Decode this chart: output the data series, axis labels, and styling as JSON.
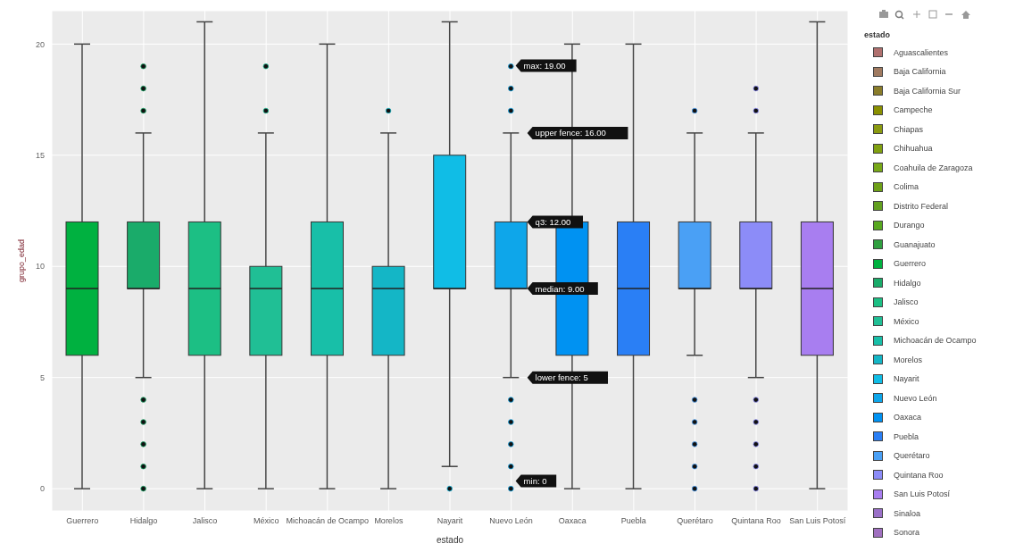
{
  "chart_data": {
    "type": "box",
    "xlabel": "estado",
    "ylabel": "grupo_edad",
    "legend_title": "estado",
    "legend": "right",
    "grid": true,
    "categories": [
      "Guerrero",
      "Hidalgo",
      "Jalisco",
      "México",
      "Michoacán de Ocampo",
      "Morelos",
      "Nayarit",
      "Nuevo León",
      "Oaxaca",
      "Puebla",
      "Querétaro",
      "Quintana Roo",
      "San Luis Potosí"
    ],
    "ylim": [
      -1,
      21.5
    ],
    "yticks": [
      0,
      5,
      10,
      15,
      20
    ],
    "annotations": [
      "max: 19.00",
      {
        "text": "upper fence: 16.00",
        "x": "Nuevo León",
        "y": 16
      },
      {
        "text": "q3: 12.00",
        "x": "Nuevo León",
        "y": 12
      },
      {
        "text": "median: 9.00",
        "x": "Nuevo León",
        "y": 9
      },
      {
        "text": "lower fence: 5",
        "x": "Nuevo León",
        "y": 5
      },
      "min: 0"
    ],
    "series": [
      {
        "name": "Aguascalientes",
        "color": "#b0706e",
        "boxes": [
          null,
          null,
          null,
          null,
          null,
          null,
          null,
          null,
          null,
          null,
          null,
          null,
          null
        ]
      },
      {
        "name": "Baja California",
        "color": "#a07a60",
        "boxes": [
          null,
          null,
          null,
          null,
          null,
          null,
          null,
          null,
          null,
          null,
          null,
          null,
          null
        ]
      },
      {
        "name": "Baja California Sur",
        "color": "#8a7d2a",
        "boxes": [
          null,
          null,
          null,
          null,
          null,
          null,
          null,
          null,
          null,
          null,
          null,
          null,
          null
        ]
      },
      {
        "name": "Campeche",
        "color": "#8a9000",
        "boxes": [
          null,
          null,
          null,
          null,
          null,
          null,
          null,
          null,
          null,
          null,
          null,
          null,
          null
        ]
      },
      {
        "name": "Chiapas",
        "color": "#8a9a10",
        "boxes": [
          null,
          null,
          null,
          null,
          null,
          null,
          null,
          null,
          null,
          null,
          null,
          null,
          null
        ]
      },
      {
        "name": "Chihuahua",
        "color": "#80a010",
        "boxes": [
          null,
          null,
          null,
          null,
          null,
          null,
          null,
          null,
          null,
          null,
          null,
          null,
          null
        ]
      },
      {
        "name": "Coahuila de Zaragoza",
        "color": "#78a818",
        "boxes": [
          null,
          null,
          null,
          null,
          null,
          null,
          null,
          null,
          null,
          null,
          null,
          null,
          null
        ]
      },
      {
        "name": "Colima",
        "color": "#6ea018",
        "boxes": [
          null,
          null,
          null,
          null,
          null,
          null,
          null,
          null,
          null,
          null,
          null,
          null,
          null
        ]
      },
      {
        "name": "Distrito Federal",
        "color": "#63a020",
        "boxes": [
          null,
          null,
          null,
          null,
          null,
          null,
          null,
          null,
          null,
          null,
          null,
          null,
          null
        ]
      },
      {
        "name": "Durango",
        "color": "#58a820",
        "boxes": [
          null,
          null,
          null,
          null,
          null,
          null,
          null,
          null,
          null,
          null,
          null,
          null,
          null
        ]
      },
      {
        "name": "Guanajuato",
        "color": "#30a040",
        "boxes": [
          null,
          null,
          null,
          null,
          null,
          null,
          null,
          null,
          null,
          null,
          null,
          null,
          null
        ]
      },
      {
        "name": "Guerrero",
        "color": "#00b140",
        "boxes": [
          {
            "low": 0,
            "q1": 6,
            "median": 9,
            "q3": 12,
            "high": 20
          },
          null,
          null,
          null,
          null,
          null,
          null,
          null,
          null,
          null,
          null,
          null,
          null
        ]
      },
      {
        "name": "Hidalgo",
        "color": "#1aab6a",
        "boxes": [
          null,
          {
            "low": 5,
            "q1": 9,
            "median": 9,
            "q3": 12,
            "high": 16,
            "outliers": [
              17,
              18,
              19,
              4,
              3,
              2,
              1,
              0
            ]
          },
          null,
          null,
          null,
          null,
          null,
          null,
          null,
          null,
          null,
          null,
          null
        ]
      },
      {
        "name": "Jalisco",
        "color": "#1cbf84",
        "boxes": [
          null,
          null,
          {
            "low": 0,
            "q1": 6,
            "median": 9,
            "q3": 12,
            "high": 21
          },
          null,
          null,
          null,
          null,
          null,
          null,
          null,
          null,
          null,
          null
        ]
      },
      {
        "name": "México",
        "color": "#20bf95",
        "boxes": [
          null,
          null,
          null,
          {
            "low": 0,
            "q1": 6,
            "median": 9,
            "q3": 10,
            "high": 16,
            "outliers": [
              17,
              19
            ]
          },
          null,
          null,
          null,
          null,
          null,
          null,
          null,
          null,
          null
        ]
      },
      {
        "name": "Michoacán de Ocampo",
        "color": "#18bfa8",
        "boxes": [
          null,
          null,
          null,
          null,
          {
            "low": 0,
            "q1": 6,
            "median": 9,
            "q3": 12,
            "high": 20
          },
          null,
          null,
          null,
          null,
          null,
          null,
          null,
          null
        ]
      },
      {
        "name": "Morelos",
        "color": "#14b6c6",
        "boxes": [
          null,
          null,
          null,
          null,
          null,
          {
            "low": 0,
            "q1": 6,
            "median": 9,
            "q3": 10,
            "high": 16,
            "outliers": [
              17
            ]
          },
          null,
          null,
          null,
          null,
          null,
          null,
          null
        ]
      },
      {
        "name": "Nayarit",
        "color": "#10bde6",
        "boxes": [
          null,
          null,
          null,
          null,
          null,
          null,
          {
            "low": 1,
            "q1": 9,
            "median": 9,
            "q3": 15,
            "high": 21,
            "outliers": [
              0
            ]
          },
          null,
          null,
          null,
          null,
          null,
          null
        ]
      },
      {
        "name": "Nuevo León",
        "color": "#0ea6ea",
        "boxes": [
          null,
          null,
          null,
          null,
          null,
          null,
          null,
          {
            "low": 5,
            "q1": 9,
            "median": 9,
            "q3": 12,
            "high": 16,
            "outliers": [
              17,
              18,
              19,
              4,
              3,
              2,
              1,
              0
            ]
          },
          null,
          null,
          null,
          null,
          null
        ]
      },
      {
        "name": "Oaxaca",
        "color": "#0092f2",
        "boxes": [
          null,
          null,
          null,
          null,
          null,
          null,
          null,
          null,
          {
            "low": 0,
            "q1": 6,
            "median": 9,
            "q3": 12,
            "high": 20
          },
          null,
          null,
          null,
          null
        ]
      },
      {
        "name": "Puebla",
        "color": "#2a7ff5",
        "boxes": [
          null,
          null,
          null,
          null,
          null,
          null,
          null,
          null,
          null,
          {
            "low": 0,
            "q1": 6,
            "median": 9,
            "q3": 12,
            "high": 20
          },
          null,
          null,
          null
        ]
      },
      {
        "name": "Querétaro",
        "color": "#4aa0f5",
        "boxes": [
          null,
          null,
          null,
          null,
          null,
          null,
          null,
          null,
          null,
          null,
          {
            "low": 6,
            "q1": 9,
            "median": 9,
            "q3": 12,
            "high": 16,
            "outliers": [
              17,
              4,
              3,
              2,
              1,
              0
            ]
          },
          null,
          null
        ]
      },
      {
        "name": "Quintana Roo",
        "color": "#8c8cf8",
        "boxes": [
          null,
          null,
          null,
          null,
          null,
          null,
          null,
          null,
          null,
          null,
          null,
          {
            "low": 5,
            "q1": 9,
            "median": 9,
            "q3": 12,
            "high": 16,
            "outliers": [
              17,
              18,
              4,
              3,
              2,
              1,
              0
            ]
          },
          null
        ]
      },
      {
        "name": "San Luis Potosí",
        "color": "#a87ef0",
        "boxes": [
          null,
          null,
          null,
          null,
          null,
          null,
          null,
          null,
          null,
          null,
          null,
          null,
          {
            "low": 0,
            "q1": 6,
            "median": 9,
            "q3": 12,
            "high": 21
          }
        ]
      },
      {
        "name": "Sinaloa",
        "color": "#9a70c8",
        "boxes": [
          null,
          null,
          null,
          null,
          null,
          null,
          null,
          null,
          null,
          null,
          null,
          null,
          null
        ]
      },
      {
        "name": "Sonora",
        "color": "#a070c0",
        "boxes": [
          null,
          null,
          null,
          null,
          null,
          null,
          null,
          null,
          null,
          null,
          null,
          null,
          null
        ]
      }
    ]
  }
}
